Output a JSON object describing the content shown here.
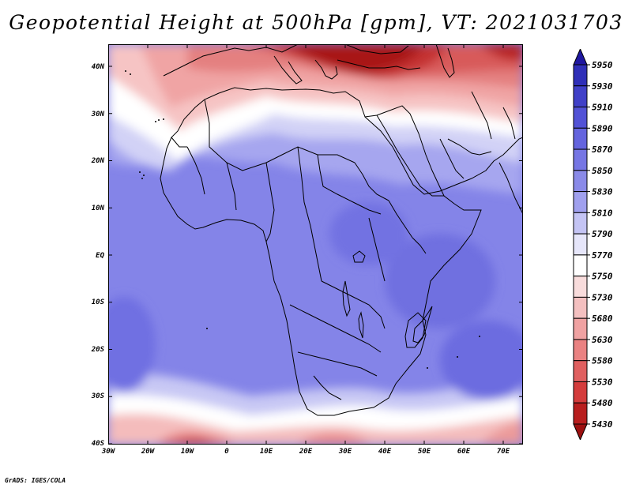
{
  "title": "Geopotential Height at 500hPa [gpm], VT: 2021031703",
  "credit": "GrADS: IGES/COLA",
  "lat_labels": [
    "40N",
    "30N",
    "20N",
    "10N",
    "EQ",
    "10S",
    "20S",
    "30S",
    "40S"
  ],
  "lon_labels": [
    "30W",
    "20W",
    "10W",
    "0",
    "10E",
    "20E",
    "30E",
    "40E",
    "50E",
    "60E",
    "70E"
  ],
  "colorbar": {
    "levels": [
      "5950",
      "5930",
      "5910",
      "5890",
      "5870",
      "5850",
      "5830",
      "5810",
      "5790",
      "5770",
      "5750",
      "5730",
      "5680",
      "5630",
      "5580",
      "5530",
      "5480",
      "5430"
    ],
    "colors": [
      "#1f17a0",
      "#2f2fb8",
      "#4040c8",
      "#5252d6",
      "#6464de",
      "#7676e4",
      "#8a8ae8",
      "#a0a0ee",
      "#c4c4f4",
      "#e6e6fa",
      "#ffffff",
      "#f8dcdc",
      "#f4c0c0",
      "#f0a2a2",
      "#ea8282",
      "#e06060",
      "#d43c3c",
      "#b81e1e",
      "#9c1010"
    ]
  },
  "map": {
    "extent": {
      "lon_min": -30,
      "lon_max": 75,
      "lat_min": -40,
      "lat_max": 45
    },
    "field_colors": {
      "ocean_blue": "#7a7ae6",
      "land_blue": "#8c8cea",
      "deep_blue": "#6a6ae0",
      "light_blue": "#c6c6f4",
      "pale": "#e4e4fa",
      "pink1": "#f6caca",
      "pink2": "#f0a6a6",
      "red1": "#e48080",
      "red2": "#d85a5a",
      "red3": "#c43232",
      "dark_red": "#a81818"
    }
  }
}
